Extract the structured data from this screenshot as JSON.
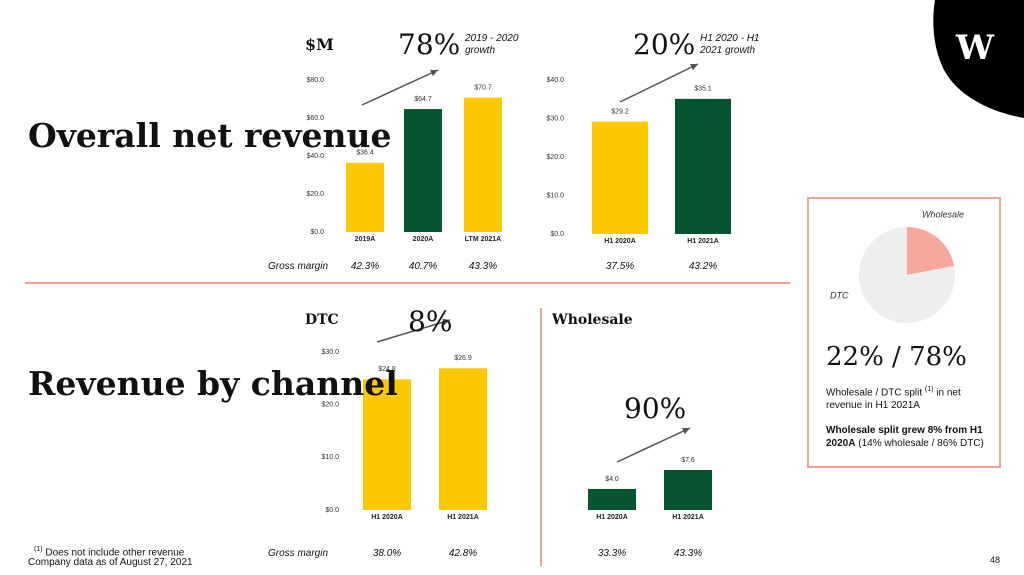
{
  "logo": "W",
  "headings": [
    "Overall net revenue",
    "Revenue by channel"
  ],
  "unit": "$M",
  "gross_margin_label": "Gross margin",
  "footnote": [
    "(1)",
    "Does not include other revenue"
  ],
  "source": "Company data as of August 27, 2021",
  "page": "48",
  "chart_data": [
    {
      "type": "bar",
      "categories": [
        "2019A",
        "2020A",
        "LTM 2021A"
      ],
      "values": [
        36.4,
        64.7,
        70.7
      ],
      "value_labels": [
        "$36.4",
        "$64.7",
        "$70.7"
      ],
      "colors": [
        "#fcc800",
        "#075530",
        "#fcc800"
      ],
      "ylim": [
        0,
        80
      ],
      "yticks": [
        {
          "value": 0,
          "label": "$0.0"
        },
        {
          "value": 20,
          "label": "$20.0"
        },
        {
          "value": 40,
          "label": "$40.0"
        },
        {
          "value": 60,
          "label": "$60.0"
        },
        {
          "value": 80,
          "label": "$80.0"
        }
      ],
      "grid": false,
      "growth": {
        "value": 78,
        "label": "78%",
        "text": "2019 - 2020 growth"
      },
      "gross_margin": {
        "values": [
          42.3,
          40.7,
          43.3
        ],
        "value_labels": [
          "42.3%",
          "40.7%",
          "43.3%"
        ]
      }
    },
    {
      "type": "bar",
      "categories": [
        "H1 2020A",
        "H1 2021A"
      ],
      "values": [
        29.2,
        35.1
      ],
      "value_labels": [
        "$29.2",
        "$35.1"
      ],
      "colors": [
        "#fcc800",
        "#075530"
      ],
      "ylim": [
        0,
        40
      ],
      "yticks": [
        {
          "value": 0,
          "label": "$0.0"
        },
        {
          "value": 10,
          "label": "$10.0"
        },
        {
          "value": 20,
          "label": "$20.0"
        },
        {
          "value": 30,
          "label": "$30.0"
        },
        {
          "value": 40,
          "label": "$40.0"
        }
      ],
      "grid": false,
      "growth": {
        "value": 20,
        "label": "20%",
        "text": "H1 2020 - H1 2021 growth"
      },
      "gross_margin": {
        "values": [
          37.5,
          43.2
        ],
        "value_labels": [
          "37.5%",
          "43.2%"
        ]
      }
    },
    {
      "type": "bar",
      "title": "DTC",
      "categories": [
        "H1 2020A",
        "H1 2021A"
      ],
      "values": [
        24.8,
        26.9
      ],
      "value_labels": [
        "$24.8",
        "$26.9"
      ],
      "colors": [
        "#fcc800",
        "#fcc800"
      ],
      "ylim": [
        0,
        30
      ],
      "yticks": [
        {
          "value": 0,
          "label": "$0.0"
        },
        {
          "value": 10,
          "label": "$10.0"
        },
        {
          "value": 20,
          "label": "$20.0"
        },
        {
          "value": 30,
          "label": "$30.0"
        }
      ],
      "grid": false,
      "growth": {
        "value": 8,
        "label": "8%"
      },
      "gross_margin": {
        "values": [
          38.0,
          42.8
        ],
        "value_labels": [
          "38.0%",
          "42.8%"
        ]
      }
    },
    {
      "type": "bar",
      "title": "Wholesale",
      "categories": [
        "H1 2020A",
        "H1 2021A"
      ],
      "values": [
        4.0,
        7.6
      ],
      "value_labels": [
        "$4.0",
        "$7.6"
      ],
      "colors": [
        "#075530",
        "#075530"
      ],
      "ylim": [
        0,
        30
      ],
      "grid": false,
      "growth": {
        "value": 90,
        "label": "90%"
      },
      "gross_margin": {
        "values": [
          33.3,
          43.3
        ],
        "value_labels": [
          "33.3%",
          "43.3%"
        ]
      }
    },
    {
      "type": "pie",
      "labels": [
        "Wholesale",
        "DTC"
      ],
      "values": [
        22,
        78
      ],
      "colors": [
        "#f8a89b",
        "#eeeeee"
      ],
      "headline": "22% / 78%",
      "split_note": [
        "Wholesale / DTC split",
        "(1)",
        "in net revenue in H1 2021A"
      ],
      "growth_note": [
        "Wholesale split grew 8% from H1 2020A",
        "(14% wholesale / 86% DTC)"
      ]
    }
  ]
}
